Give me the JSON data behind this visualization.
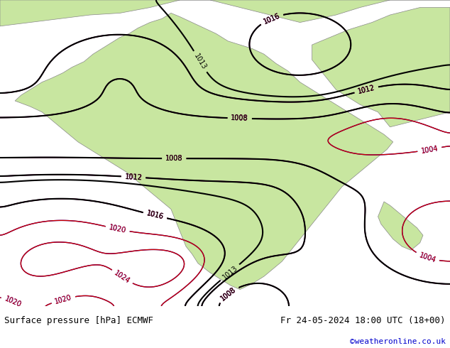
{
  "title_left": "Surface pressure [hPa] ECMWF",
  "title_right": "Fr 24-05-2024 18:00 UTC (18+00)",
  "watermark": "©weatheronline.co.uk",
  "bg_color": "#d0d0d0",
  "land_color": "#c8e6a0",
  "sea_color": "#d8e8f0",
  "fig_width": 6.34,
  "fig_height": 4.9,
  "dpi": 100,
  "bottom_bar_color": "#f0f0f0",
  "title_fontsize": 9,
  "watermark_color": "#0000cc",
  "text_color": "#000000",
  "isobar_blue_color": "#0000cc",
  "isobar_red_color": "#cc0000",
  "isobar_black_color": "#000000"
}
